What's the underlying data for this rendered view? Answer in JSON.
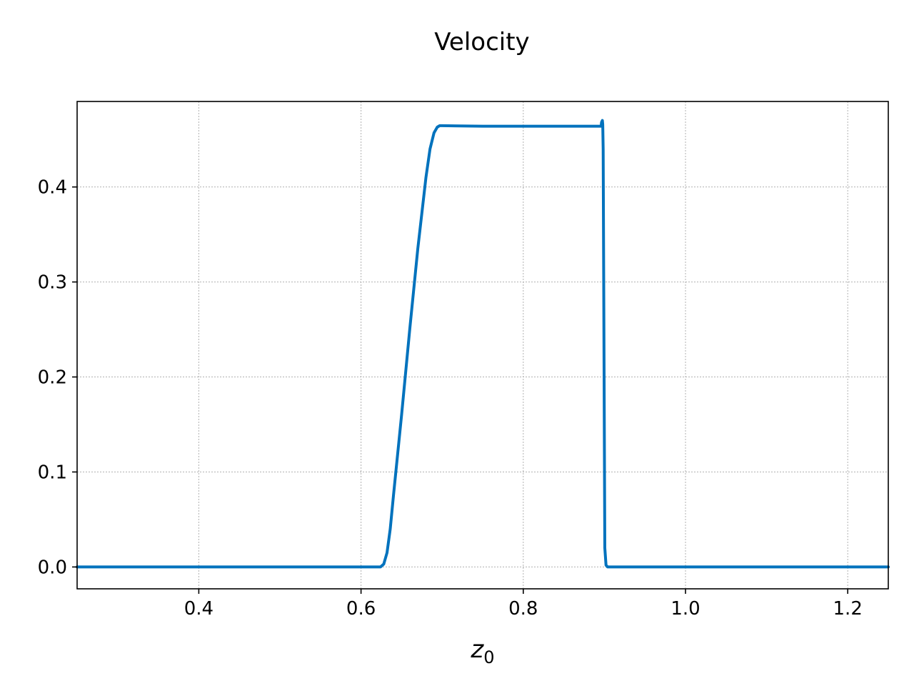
{
  "chart_data": {
    "type": "line",
    "title": "Velocity",
    "xlabel_main": "z",
    "xlabel_sub": "0",
    "ylabel": "",
    "xlim": [
      0.25,
      1.25
    ],
    "ylim": [
      -0.023,
      0.49
    ],
    "xticks": [
      0.4,
      0.6,
      0.8,
      1.0,
      1.2
    ],
    "xtick_labels": [
      "0.4",
      "0.6",
      "0.8",
      "1.0",
      "1.2"
    ],
    "yticks": [
      0.0,
      0.1,
      0.2,
      0.3,
      0.4
    ],
    "ytick_labels": [
      "0.0",
      "0.1",
      "0.2",
      "0.3",
      "0.4"
    ],
    "grid": true,
    "series": [
      {
        "color": "#0072bd",
        "x": [
          0.25,
          0.6,
          0.624,
          0.628,
          0.632,
          0.636,
          0.64,
          0.65,
          0.66,
          0.67,
          0.68,
          0.685,
          0.69,
          0.694,
          0.697,
          0.7,
          0.75,
          0.8,
          0.85,
          0.896,
          0.8965,
          0.8975,
          0.898,
          0.8985,
          0.899,
          0.9005,
          0.902,
          0.904,
          0.95,
          1.0,
          1.1,
          1.25
        ],
        "y": [
          0.0,
          0.0,
          0.0,
          0.003,
          0.015,
          0.04,
          0.075,
          0.16,
          0.25,
          0.335,
          0.41,
          0.44,
          0.457,
          0.463,
          0.4645,
          0.4645,
          0.464,
          0.464,
          0.464,
          0.464,
          0.468,
          0.47,
          0.466,
          0.44,
          0.33,
          0.02,
          0.002,
          0.0,
          0.0,
          0.0,
          0.0,
          0.0
        ]
      }
    ]
  }
}
